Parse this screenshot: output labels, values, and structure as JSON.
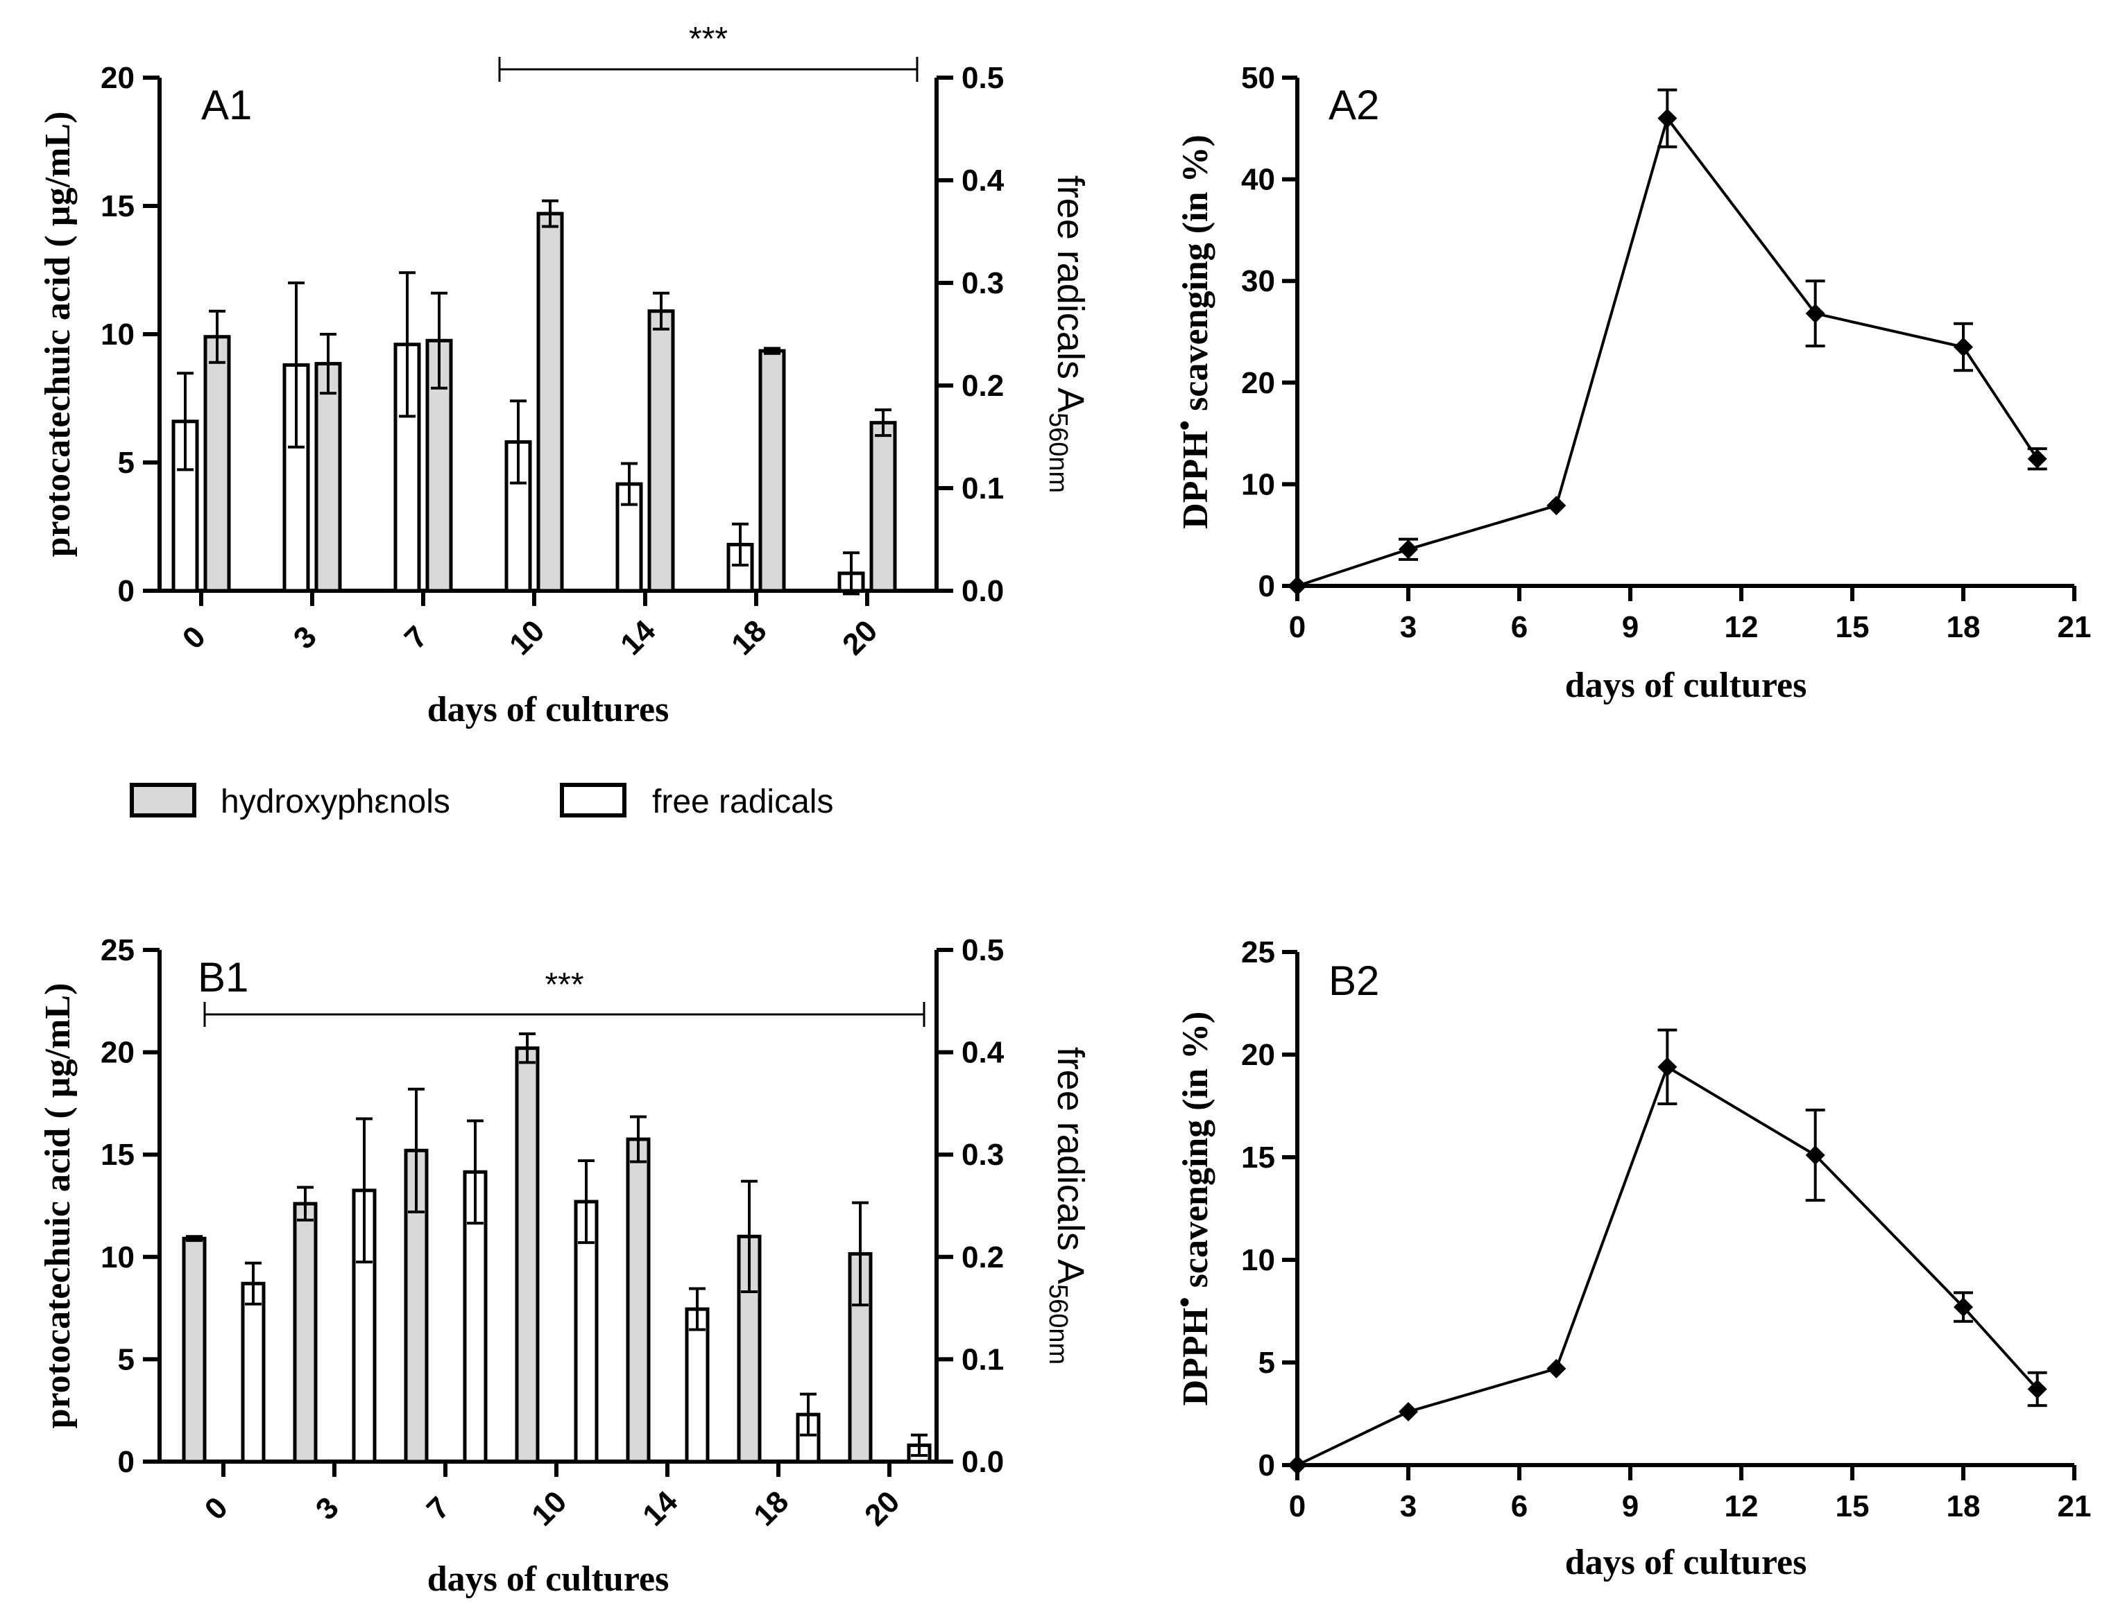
{
  "chart_data": [
    {
      "id": "A1",
      "type": "bar",
      "panel_label": "A1",
      "xlabel": "days of cultures",
      "ylabel": "protocatechuic acid ( µg/mL)",
      "ylabel_right": "free radicals A",
      "ylabel_right_sub": "560nm",
      "categories": [
        "0",
        "3",
        "7",
        "10",
        "14",
        "18",
        "20"
      ],
      "ylim": [
        0,
        20
      ],
      "yticks": [
        "0",
        "5",
        "10",
        "15",
        "20"
      ],
      "ylim_right": [
        0,
        0.5
      ],
      "yticks_right": [
        "0.0",
        "0.1",
        "0.2",
        "0.3",
        "0.4",
        "0.5"
      ],
      "bar_order": [
        "free radicals",
        "hydroxyphenols"
      ],
      "series": [
        {
          "name": "free radicals",
          "axis": "right",
          "fill": "#ffffff",
          "values": [
            0.165,
            0.22,
            0.24,
            0.145,
            0.104,
            0.045,
            0.017
          ],
          "errors": [
            0.047,
            0.08,
            0.07,
            0.04,
            0.02,
            0.02,
            0.02
          ]
        },
        {
          "name": "hydroxyphenols",
          "axis": "left",
          "fill": "#d9d9d9",
          "values": [
            9.9,
            8.85,
            9.75,
            14.7,
            10.9,
            9.35,
            6.55
          ],
          "errors": [
            1.0,
            1.15,
            1.85,
            0.5,
            0.7,
            0.1,
            0.5
          ]
        }
      ],
      "significance": {
        "label": "***",
        "from_index": 3,
        "to_index": 6
      }
    },
    {
      "id": "B1",
      "type": "bar",
      "panel_label": "B1",
      "xlabel": "days of cultures",
      "ylabel": "protocatechuic acid ( µg/mL)",
      "ylabel_right": "free radicals A",
      "ylabel_right_sub": "560nm",
      "categories": [
        "0",
        "3",
        "7",
        "10",
        "14",
        "18",
        "20"
      ],
      "ylim": [
        0,
        25
      ],
      "yticks": [
        "0",
        "5",
        "10",
        "15",
        "20",
        "25"
      ],
      "ylim_right": [
        0,
        0.5
      ],
      "yticks_right": [
        "0.0",
        "0.1",
        "0.2",
        "0.3",
        "0.4",
        "0.5"
      ],
      "bar_order": [
        "hydroxyphenols",
        "free radicals"
      ],
      "series": [
        {
          "name": "hydroxyphenols",
          "axis": "left",
          "fill": "#d9d9d9",
          "values": [
            10.9,
            12.6,
            15.2,
            20.2,
            15.75,
            11.0,
            10.15
          ],
          "errors": [
            0.1,
            0.8,
            3.0,
            0.7,
            1.1,
            2.7,
            2.5
          ]
        },
        {
          "name": "free radicals",
          "axis": "right",
          "fill": "#ffffff",
          "values": [
            0.174,
            0.265,
            0.283,
            0.254,
            0.149,
            0.046,
            0.016
          ],
          "errors": [
            0.02,
            0.07,
            0.05,
            0.04,
            0.02,
            0.02,
            0.01
          ]
        }
      ],
      "significance": {
        "label": "***",
        "from_index": 0,
        "to_index": 6
      }
    },
    {
      "id": "A2",
      "type": "line",
      "panel_label": "A2",
      "xlabel": "days of cultures",
      "ylabel": "DPPH",
      "ylabel_sup": "•",
      "ylabel_suffix": " scavenging (in %)",
      "xlim": [
        0,
        21
      ],
      "xticks": [
        "0",
        "3",
        "6",
        "9",
        "12",
        "15",
        "18",
        "21"
      ],
      "ylim": [
        0,
        50
      ],
      "yticks": [
        "0",
        "10",
        "20",
        "30",
        "40",
        "50"
      ],
      "x": [
        0,
        3,
        7,
        10,
        14,
        18,
        20
      ],
      "y": [
        0,
        3.6,
        7.9,
        46.0,
        26.8,
        23.5,
        12.5
      ],
      "errors": [
        0,
        1.0,
        0,
        2.8,
        3.2,
        2.3,
        1.0
      ]
    },
    {
      "id": "B2",
      "type": "line",
      "panel_label": "B2",
      "xlabel": "days of cultures",
      "ylabel": "DPPH",
      "ylabel_sup": "•",
      "ylabel_suffix": " scavenging (in %)",
      "xlim": [
        0,
        21
      ],
      "xticks": [
        "0",
        "3",
        "6",
        "9",
        "12",
        "15",
        "18",
        "21"
      ],
      "ylim": [
        0,
        25
      ],
      "yticks": [
        "0",
        "5",
        "10",
        "15",
        "20",
        "25"
      ],
      "x": [
        0,
        3,
        7,
        10,
        14,
        18,
        20
      ],
      "y": [
        0,
        2.6,
        4.7,
        19.4,
        15.1,
        7.7,
        3.7
      ],
      "errors": [
        0,
        0,
        0,
        1.8,
        2.2,
        0.7,
        0.8
      ]
    }
  ],
  "legend": {
    "items": [
      {
        "label": "hydroxyphεnols",
        "fill": "#d9d9d9"
      },
      {
        "label": "free radicals",
        "fill": "#ffffff"
      }
    ]
  }
}
